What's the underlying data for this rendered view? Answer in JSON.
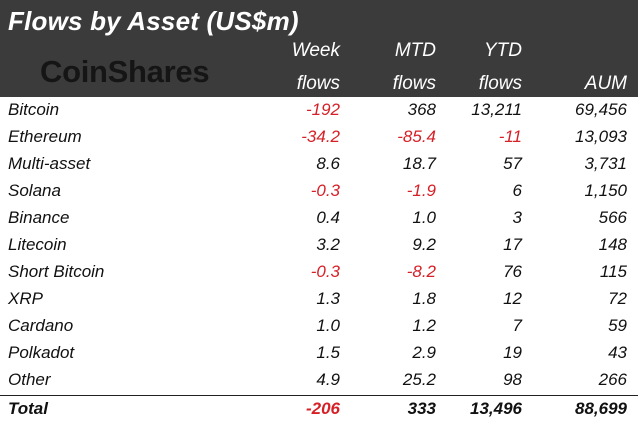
{
  "title": "Flows by Asset (US$m)",
  "brand": "CoinShares",
  "columns": {
    "week_line1": "Week",
    "week_line2": "flows",
    "mtd_line1": "MTD",
    "mtd_line2": "flows",
    "ytd_line1": "YTD",
    "ytd_line2": "flows",
    "aum": "AUM"
  },
  "colors": {
    "header_bg": "#3b3b3b",
    "negative": "#d62027"
  },
  "rows": [
    {
      "name": "Bitcoin",
      "week": "-192",
      "mtd": "368",
      "ytd": "13,211",
      "aum": "69,456"
    },
    {
      "name": "Ethereum",
      "week": "-34.2",
      "mtd": "-85.4",
      "ytd": "-11",
      "aum": "13,093"
    },
    {
      "name": "Multi-asset",
      "week": "8.6",
      "mtd": "18.7",
      "ytd": "57",
      "aum": "3,731"
    },
    {
      "name": "Solana",
      "week": "-0.3",
      "mtd": "-1.9",
      "ytd": "6",
      "aum": "1,150"
    },
    {
      "name": "Binance",
      "week": "0.4",
      "mtd": "1.0",
      "ytd": "3",
      "aum": "566"
    },
    {
      "name": "Litecoin",
      "week": "3.2",
      "mtd": "9.2",
      "ytd": "17",
      "aum": "148"
    },
    {
      "name": "Short Bitcoin",
      "week": "-0.3",
      "mtd": "-8.2",
      "ytd": "76",
      "aum": "115"
    },
    {
      "name": "XRP",
      "week": "1.3",
      "mtd": "1.8",
      "ytd": "12",
      "aum": "72"
    },
    {
      "name": "Cardano",
      "week": "1.0",
      "mtd": "1.2",
      "ytd": "7",
      "aum": "59"
    },
    {
      "name": "Polkadot",
      "week": "1.5",
      "mtd": "2.9",
      "ytd": "19",
      "aum": "43"
    },
    {
      "name": "Other",
      "week": "4.9",
      "mtd": "25.2",
      "ytd": "98",
      "aum": "266"
    }
  ],
  "total": {
    "name": "Total",
    "week": "-206",
    "mtd": "333",
    "ytd": "13,496",
    "aum": "88,699"
  }
}
